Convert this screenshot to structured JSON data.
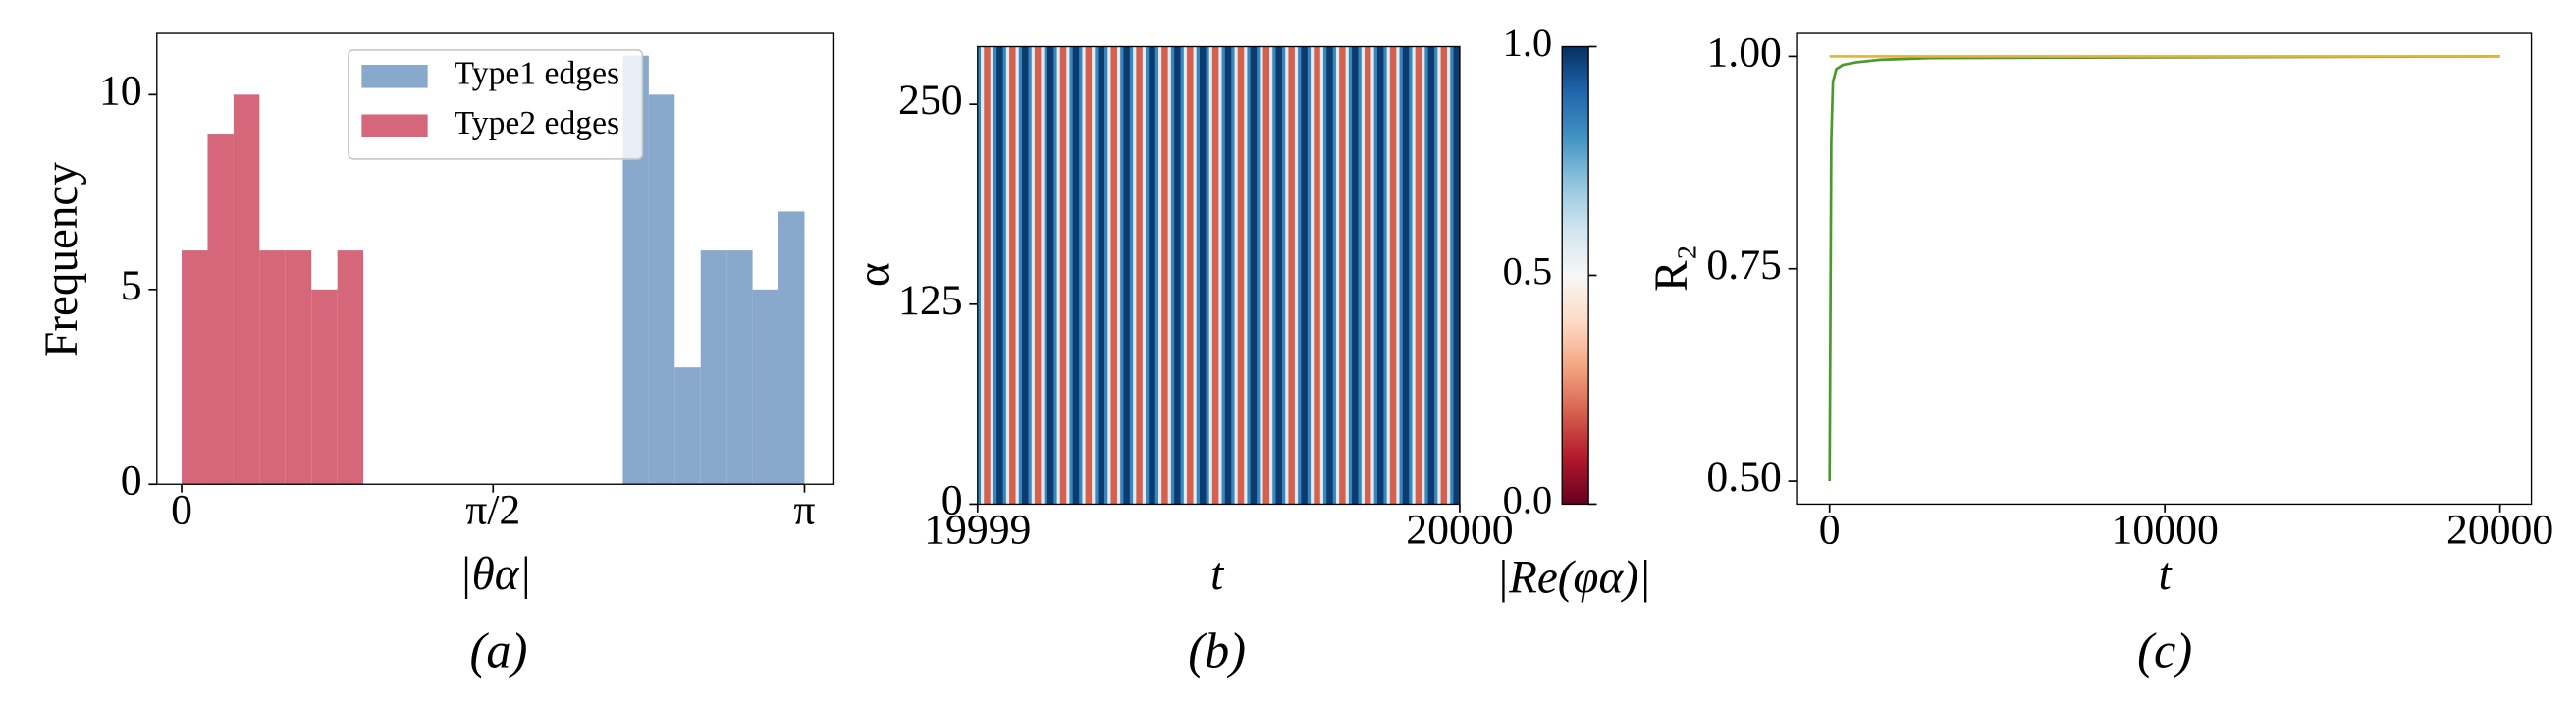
{
  "chart_data": [
    {
      "type": "histogram",
      "caption": "(a)",
      "xlabel": "|θα|",
      "ylabel": "Frequency",
      "xlim": [
        -0.125,
        3.29
      ],
      "ylim": [
        0,
        11.57
      ],
      "xticks": [
        0,
        {
          "value": 1.5708,
          "label": "π/2"
        },
        {
          "value": 3.1416,
          "label": "π"
        }
      ],
      "yticks": [
        0,
        5,
        10
      ],
      "legend": "upper center",
      "series": [
        {
          "name": "Type1 edges",
          "color": "#88a8cc",
          "bins": [
            2.2253,
            2.3562,
            2.4871,
            2.618,
            2.7489,
            2.8798,
            3.0107,
            3.1416
          ],
          "values": [
            11,
            10,
            3,
            6,
            6,
            5,
            7
          ]
        },
        {
          "name": "Type2 edges",
          "color": "#d6667a",
          "bins": [
            0,
            0.1309,
            0.2618,
            0.3927,
            0.5236,
            0.6545,
            0.7854,
            0.9163
          ],
          "values": [
            6,
            9,
            10,
            6,
            6,
            5,
            6
          ]
        }
      ]
    },
    {
      "type": "heatmap",
      "caption": "(b)",
      "xlabel": "t",
      "ylabel": "α",
      "colorbar_label": "|Re(φα)|",
      "colormap": "RdBu",
      "xlim": [
        19999,
        20000
      ],
      "ylim": [
        0,
        286
      ],
      "xticks": [
        19999,
        20000
      ],
      "yticks": [
        0,
        125,
        250
      ],
      "clim": [
        0,
        1
      ],
      "cticks": [
        {
          "value": 0,
          "label": "0.0"
        },
        0.5,
        {
          "value": 1,
          "label": "1.0"
        }
      ],
      "values": [
        0.83,
        0.56,
        0.2,
        0.2,
        0.56,
        0.83,
        0.98,
        0.98,
        0.83,
        0.56,
        0.2,
        0.2,
        0.56,
        0.83,
        0.98,
        0.98,
        0.83,
        0.56,
        0.2,
        0.2,
        0.56,
        0.83,
        0.98,
        0.98,
        0.83,
        0.56,
        0.2,
        0.2,
        0.56,
        0.83,
        0.98,
        0.98,
        0.83,
        0.56,
        0.2,
        0.2,
        0.56,
        0.83,
        0.98,
        0.98,
        0.83,
        0.56,
        0.2,
        0.2,
        0.56,
        0.83,
        0.98,
        0.98,
        0.83,
        0.56,
        0.2,
        0.2,
        0.56,
        0.83,
        0.98,
        0.98,
        0.83,
        0.56,
        0.2,
        0.2,
        0.56,
        0.83,
        0.98,
        0.98,
        0.83,
        0.56,
        0.2,
        0.2,
        0.56,
        0.83,
        0.98,
        0.98,
        0.83,
        0.56,
        0.2,
        0.2,
        0.56,
        0.83,
        0.98,
        0.98,
        0.83,
        0.56,
        0.2,
        0.2,
        0.56,
        0.83,
        0.98,
        0.98,
        0.83,
        0.56,
        0.2,
        0.2,
        0.56,
        0.83,
        0.98,
        0.98,
        0.83,
        0.56,
        0.2,
        0.2,
        0.56,
        0.83,
        0.98,
        0.98,
        0.83,
        0.56,
        0.2,
        0.2,
        0.56,
        0.83,
        0.98,
        0.98,
        0.83,
        0.56,
        0.2,
        0.2,
        0.56,
        0.83,
        0.98,
        0.98,
        0.83,
        0.56,
        0.2,
        0.2,
        0.56,
        0.83,
        0.98,
        0.98,
        0.83,
        0.56,
        0.2,
        0.2,
        0.56,
        0.83,
        0.98,
        0.98,
        0.83,
        0.56,
        0.2,
        0.2,
        0.56,
        0.83,
        0.98,
        0.98,
        0.83,
        0.56,
        0.2,
        0.2,
        0.56,
        0.83,
        0.98,
        0.98
      ]
    },
    {
      "type": "line",
      "caption": "(c)",
      "xlabel": "t",
      "ylabel": "R₂",
      "xlim": [
        -985,
        20936
      ],
      "ylim": [
        0.473,
        1.027
      ],
      "xticks": [
        0,
        10000,
        20000
      ],
      "yticks": [
        {
          "value": 0.5,
          "label": "0.50"
        },
        {
          "value": 0.75,
          "label": "0.75"
        },
        {
          "value": 1.0,
          "label": "1.00"
        }
      ],
      "series": [
        {
          "color": "#e8b040",
          "x": [
            0,
            20000
          ],
          "values": [
            1.0,
            1.0
          ]
        },
        {
          "color": "#4a9a2a",
          "x": [
            0,
            50,
            100,
            200,
            400,
            800,
            1500,
            3000,
            20000
          ],
          "values": [
            0.5,
            0.9,
            0.97,
            0.985,
            0.99,
            0.993,
            0.996,
            0.998,
            1.0
          ]
        }
      ]
    }
  ]
}
